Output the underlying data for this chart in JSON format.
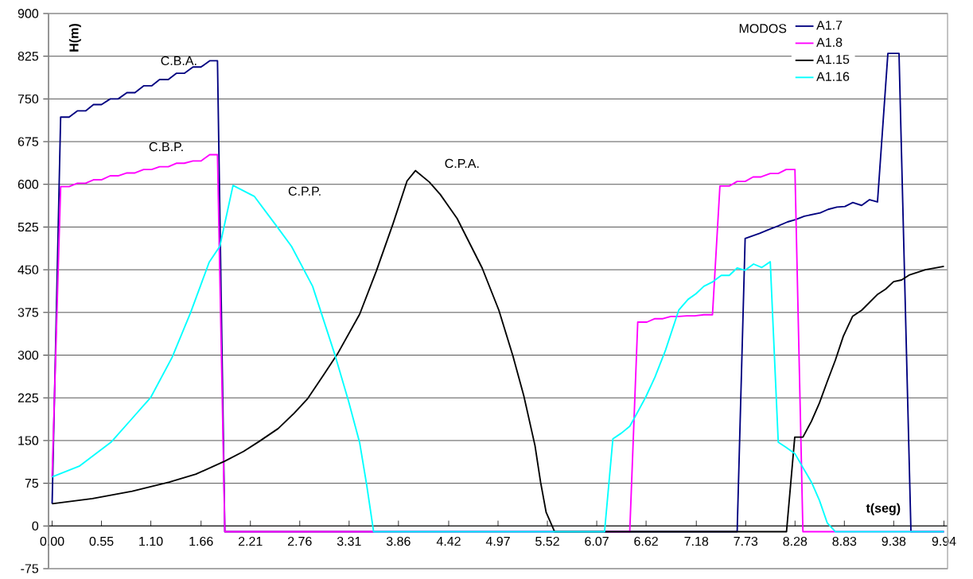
{
  "chart_data": {
    "type": "line",
    "xlabel": "t(seg)",
    "ylabel": "H(m)",
    "legend_title": "MODOS",
    "xlim": [
      -0.04,
      9.98
    ],
    "ylim": [
      -75,
      900
    ],
    "xticks": [
      {
        "value": 0,
        "label": "0.00"
      },
      0.55,
      {
        "value": 1.1,
        "label": "1.10"
      },
      1.66,
      2.21,
      2.76,
      3.31,
      3.86,
      4.42,
      4.97,
      5.52,
      6.07,
      6.62,
      7.18,
      7.73,
      8.28,
      8.83,
      9.38,
      9.94
    ],
    "yticks": [
      -75,
      0,
      75,
      150,
      225,
      300,
      375,
      450,
      525,
      600,
      675,
      750,
      825,
      900
    ],
    "grid": "y",
    "legend": "top right",
    "marker": "none",
    "line_style": "solid",
    "series": [
      {
        "name": "A1.7",
        "color": "#000080",
        "x": [
          0,
          0.095,
          0.189,
          0.281,
          0.373,
          0.461,
          0.55,
          0.648,
          0.736,
          0.834,
          0.923,
          1.02,
          1.109,
          1.198,
          1.295,
          1.384,
          1.473,
          1.57,
          1.659,
          1.756,
          1.843,
          1.925,
          7.635,
          7.724,
          7.886,
          7.993,
          8.091,
          8.197,
          8.286,
          8.383,
          8.472,
          8.561,
          8.649,
          8.747,
          8.836,
          8.924,
          9.022,
          9.111,
          9.199,
          9.315,
          9.439,
          9.572,
          9.94
        ],
        "values": [
          39,
          718,
          718,
          729,
          729,
          740,
          740,
          750,
          750,
          761,
          761,
          773,
          773,
          784,
          784,
          795,
          795,
          806,
          806,
          817,
          817,
          -10,
          -10,
          505,
          514,
          521,
          527,
          534,
          538,
          544,
          547,
          550,
          556,
          560,
          561,
          568,
          563,
          573,
          569,
          830,
          830,
          -10,
          -10
        ]
      },
      {
        "name": "A1.8",
        "color": "#ff00ff",
        "x": [
          0,
          0.095,
          0.189,
          0.281,
          0.373,
          0.461,
          0.55,
          0.648,
          0.736,
          0.834,
          0.923,
          1.02,
          1.109,
          1.198,
          1.295,
          1.384,
          1.473,
          1.57,
          1.659,
          1.756,
          1.843,
          1.925,
          6.438,
          6.527,
          6.629,
          6.718,
          6.807,
          6.896,
          6.984,
          7.073,
          7.162,
          7.265,
          7.36,
          7.443,
          7.547,
          7.635,
          7.724,
          7.813,
          7.901,
          8.004,
          8.093,
          8.181,
          8.279,
          8.368,
          9.94
        ],
        "values": [
          86,
          596,
          596,
          602,
          602,
          608,
          608,
          615,
          615,
          620,
          620,
          626,
          626,
          631,
          631,
          637,
          637,
          641,
          641,
          652,
          652,
          -10,
          -10,
          358,
          358,
          364,
          364,
          368,
          368,
          369,
          369,
          371,
          371,
          597,
          597,
          605,
          605,
          613,
          613,
          619,
          619,
          626,
          626,
          -10,
          -10
        ]
      },
      {
        "name": "A1.15",
        "color": "#000000",
        "x": [
          0,
          0.45,
          0.893,
          1.307,
          1.603,
          1.928,
          2.135,
          2.313,
          2.519,
          2.697,
          2.845,
          3.025,
          3.18,
          3.428,
          3.614,
          3.8,
          3.956,
          4.049,
          4.204,
          4.327,
          4.514,
          4.793,
          4.979,
          5.135,
          5.258,
          5.382,
          5.444,
          5.506,
          5.6,
          8.185,
          8.277,
          8.368,
          8.463,
          8.552,
          8.64,
          8.729,
          8.818,
          8.921,
          9.024,
          9.202,
          9.29,
          9.379,
          9.468,
          9.557,
          9.734,
          9.94
        ],
        "values": [
          39,
          48,
          61,
          77,
          91,
          114,
          131,
          149,
          171,
          198,
          223,
          265,
          302,
          372,
          448,
          531,
          606,
          624,
          604,
          582,
          540,
          453,
          379,
          299,
          228,
          141,
          77,
          24,
          -10,
          -10,
          156,
          156,
          184,
          216,
          254,
          291,
          333,
          368,
          379,
          407,
          416,
          429,
          432,
          441,
          450,
          456
        ]
      },
      {
        "name": "A1.16",
        "color": "#00ffff",
        "x": [
          0,
          0.302,
          0.656,
          0.893,
          1.1,
          1.337,
          1.544,
          1.75,
          1.869,
          2.016,
          2.253,
          2.519,
          2.668,
          2.903,
          3.149,
          3.304,
          3.428,
          3.506,
          3.583,
          6.157,
          6.25,
          6.344,
          6.438,
          6.512,
          6.615,
          6.718,
          6.837,
          6.984,
          7.088,
          7.177,
          7.265,
          7.354,
          7.458,
          7.547,
          7.635,
          7.724,
          7.818,
          7.91,
          8.004,
          8.093,
          8.181,
          8.279,
          8.359,
          8.463,
          8.552,
          8.64,
          8.729,
          9.94
        ],
        "values": [
          86,
          105,
          147,
          189,
          226,
          296,
          375,
          463,
          491,
          598,
          579,
          523,
          491,
          421,
          302,
          219,
          146,
          72,
          -10,
          -10,
          153,
          163,
          175,
          196,
          226,
          261,
          309,
          379,
          398,
          408,
          421,
          428,
          440,
          440,
          453,
          449,
          460,
          454,
          464,
          147,
          138,
          127,
          105,
          77,
          45,
          5,
          -10,
          -10
        ]
      }
    ],
    "annotations": [
      "C.B.A.",
      "C.B.P.",
      "C.P.P.",
      "C.P.A."
    ]
  }
}
